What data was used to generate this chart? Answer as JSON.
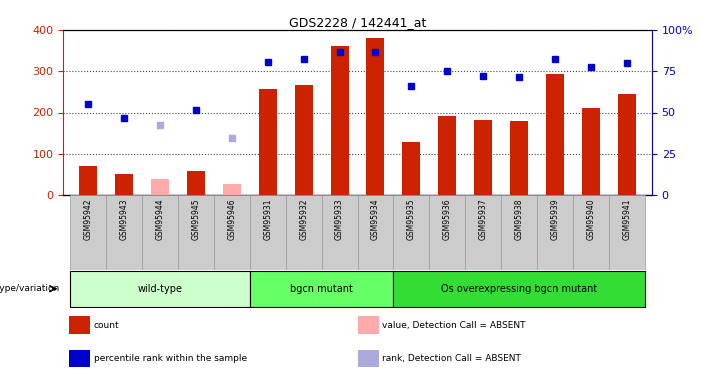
{
  "title": "GDS2228 / 142441_at",
  "samples": [
    "GSM95942",
    "GSM95943",
    "GSM95944",
    "GSM95945",
    "GSM95946",
    "GSM95931",
    "GSM95932",
    "GSM95933",
    "GSM95934",
    "GSM95935",
    "GSM95936",
    "GSM95937",
    "GSM95938",
    "GSM95939",
    "GSM95940",
    "GSM95941"
  ],
  "bar_values": [
    70,
    52,
    null,
    57,
    null,
    256,
    267,
    362,
    381,
    128,
    192,
    181,
    180,
    294,
    212,
    246
  ],
  "bar_absent": [
    null,
    null,
    38,
    null,
    27,
    null,
    null,
    null,
    null,
    null,
    null,
    null,
    null,
    null,
    null,
    null
  ],
  "rank_values": [
    220,
    186,
    null,
    207,
    null,
    323,
    330,
    347,
    347,
    265,
    300,
    288,
    287,
    330,
    310,
    320
  ],
  "rank_absent": [
    null,
    null,
    170,
    null,
    137,
    null,
    null,
    null,
    null,
    null,
    null,
    null,
    null,
    null,
    null,
    null
  ],
  "ylim_left": [
    0,
    400
  ],
  "ylim_right": [
    0,
    400
  ],
  "yticks_left": [
    0,
    100,
    200,
    300,
    400
  ],
  "ytick_labels_left": [
    "0",
    "100",
    "200",
    "300",
    "400"
  ],
  "yticks_right": [
    0,
    100,
    200,
    300,
    400
  ],
  "ytick_labels_right": [
    "0",
    "25",
    "50",
    "75",
    "100%"
  ],
  "groups": [
    {
      "label": "wild-type",
      "start": 0,
      "end": 5,
      "color": "#ccffcc"
    },
    {
      "label": "bgcn mutant",
      "start": 5,
      "end": 9,
      "color": "#66ff66"
    },
    {
      "label": "Os overexpressing bgcn mutant",
      "start": 9,
      "end": 16,
      "color": "#33dd33"
    }
  ],
  "bar_color": "#cc2200",
  "bar_absent_color": "#ffaaaa",
  "rank_color": "#0000cc",
  "rank_absent_color": "#aaaadd",
  "grid_color": "#888888",
  "plot_bg_color": "#ffffff",
  "xlabel_color": "#cc2200",
  "ylabel_right_color": "#0000cc",
  "genotype_label": "genotype/variation",
  "legend_items": [
    {
      "label": "count",
      "color": "#cc2200"
    },
    {
      "label": "percentile rank within the sample",
      "color": "#0000cc"
    },
    {
      "label": "value, Detection Call = ABSENT",
      "color": "#ffaaaa"
    },
    {
      "label": "rank, Detection Call = ABSENT",
      "color": "#aaaadd"
    }
  ],
  "n_samples": 16,
  "xlim": [
    -0.7,
    15.7
  ]
}
